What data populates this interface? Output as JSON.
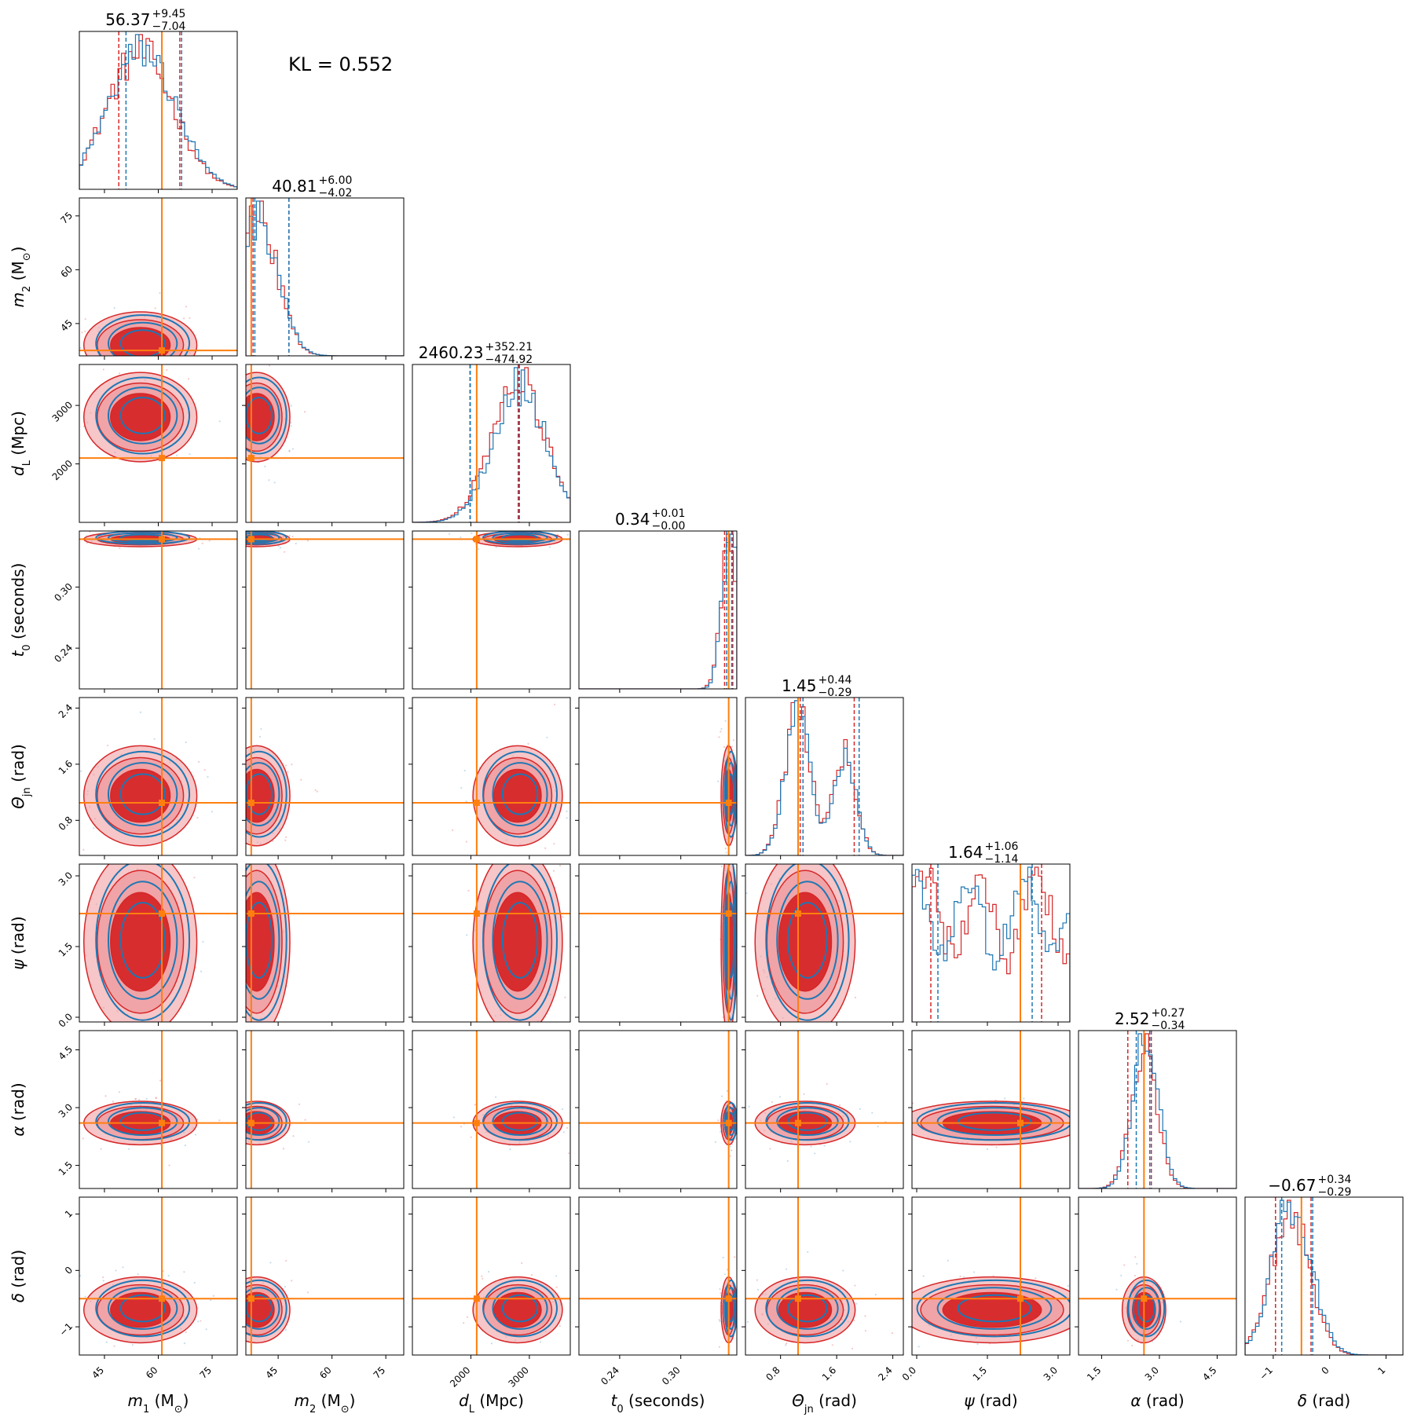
{
  "kl_label": "KL = 0.552",
  "colors": {
    "red": "#d62728",
    "red_light": "#f0a0a3",
    "blue": "#1f77b4",
    "orange": "#ff7f0e"
  },
  "chart_data": {
    "type": "corner",
    "parameters": [
      {
        "key": "m1",
        "label_main": "m",
        "label_sub": "1",
        "label_unit": "(M",
        "label_unit_sub": "⊙",
        "label_close": ")",
        "range": [
          38,
          82
        ],
        "ticks": [
          45,
          60,
          75
        ],
        "tick_labels": [
          "45",
          "60",
          "75"
        ],
        "truth": 61,
        "title_median": "56.37",
        "title_plus": "+9.45",
        "title_minus": "−7.04",
        "red_q": [
          49,
          66
        ],
        "blue_q": [
          51,
          66.5
        ],
        "mode": 55
      },
      {
        "key": "m2",
        "label_main": "m",
        "label_sub": "2",
        "label_unit": "(M",
        "label_unit_sub": "⊙",
        "label_close": ")",
        "range": [
          36,
          80
        ],
        "ticks": [
          45,
          60,
          75
        ],
        "tick_labels": [
          "45",
          "60",
          "75"
        ],
        "truth": 37.5,
        "title_median": "40.81",
        "title_plus": "+6.00",
        "title_minus": "−4.02",
        "red_q": [
          38,
          48
        ],
        "blue_q": [
          38.5,
          48
        ],
        "mode": 39
      },
      {
        "key": "dL",
        "label_main": "d",
        "label_sub": "L",
        "label_unit": "(Mpc",
        "label_unit_sub": "",
        "label_close": ")",
        "range": [
          1000,
          3700
        ],
        "ticks": [
          2000,
          3000
        ],
        "tick_labels": [
          "2000",
          "3000"
        ],
        "truth": 2100,
        "title_median": "2460.23",
        "title_plus": "+352.21",
        "title_minus": "−474.92",
        "red_q": [
          1985,
          2810
        ],
        "blue_q": [
          1990,
          2830
        ],
        "mode": 2800
      },
      {
        "key": "t0",
        "label_main": "t",
        "label_sub": "0",
        "label_unit": "(seconds",
        "label_unit_sub": "",
        "label_close": ")",
        "range": [
          0.2,
          0.355
        ],
        "ticks": [
          0.24,
          0.3
        ],
        "tick_labels": [
          "0.24",
          "0.30"
        ],
        "truth": 0.347,
        "title_median": "0.34",
        "title_plus": "+0.01",
        "title_minus": "−0.00",
        "red_q": [
          0.343,
          0.351
        ],
        "blue_q": [
          0.345,
          0.35
        ],
        "mode": 0.347
      },
      {
        "key": "theta",
        "label_main": "Θ",
        "label_sub": "jn",
        "label_unit": "(rad",
        "label_unit_sub": "",
        "label_close": ")",
        "range": [
          0.3,
          2.55
        ],
        "ticks": [
          0.8,
          1.6,
          2.4
        ],
        "tick_labels": [
          "0.8",
          "1.6",
          "2.4"
        ],
        "truth": 1.05,
        "title_median": "1.45",
        "title_plus": "+0.44",
        "title_minus": "−0.29",
        "red_q": [
          1.08,
          1.85
        ],
        "blue_q": [
          1.12,
          1.92
        ],
        "mode": 1.15
      },
      {
        "key": "psi",
        "label_main": "ψ",
        "label_sub": "",
        "label_unit": "(rad",
        "label_unit_sub": "",
        "label_close": ")",
        "range": [
          -0.1,
          3.25
        ],
        "ticks": [
          0,
          1.5,
          3
        ],
        "tick_labels": [
          "0.0",
          "1.5",
          "3.0"
        ],
        "truth": 2.2,
        "title_median": "1.64",
        "title_plus": "+1.06",
        "title_minus": "−1.14",
        "red_q": [
          0.3,
          2.65
        ],
        "blue_q": [
          0.45,
          2.45
        ],
        "mode": 1.6
      },
      {
        "key": "alpha",
        "label_main": "α",
        "label_sub": "",
        "label_unit": "(rad",
        "label_unit_sub": "",
        "label_close": ")",
        "range": [
          0.9,
          5.0
        ],
        "ticks": [
          1.5,
          3,
          4.5
        ],
        "tick_labels": [
          "1.5",
          "3.0",
          "4.5"
        ],
        "truth": 2.6,
        "title_median": "2.52",
        "title_plus": "+0.27",
        "title_minus": "−0.34",
        "red_q": [
          2.18,
          2.79
        ],
        "blue_q": [
          2.4,
          2.75
        ],
        "mode": 2.6
      },
      {
        "key": "delta",
        "label_main": "δ",
        "label_sub": "",
        "label_unit": "(rad",
        "label_unit_sub": "",
        "label_close": ")",
        "range": [
          -1.5,
          1.3
        ],
        "ticks": [
          -1,
          0,
          1
        ],
        "tick_labels": [
          "−1",
          "0",
          "1"
        ],
        "truth": -0.5,
        "title_median": "−0.67",
        "title_plus": "+0.34",
        "title_minus": "−0.29",
        "red_q": [
          -0.96,
          -0.33
        ],
        "blue_q": [
          -0.85,
          -0.3
        ],
        "mode": -0.7
      }
    ]
  }
}
